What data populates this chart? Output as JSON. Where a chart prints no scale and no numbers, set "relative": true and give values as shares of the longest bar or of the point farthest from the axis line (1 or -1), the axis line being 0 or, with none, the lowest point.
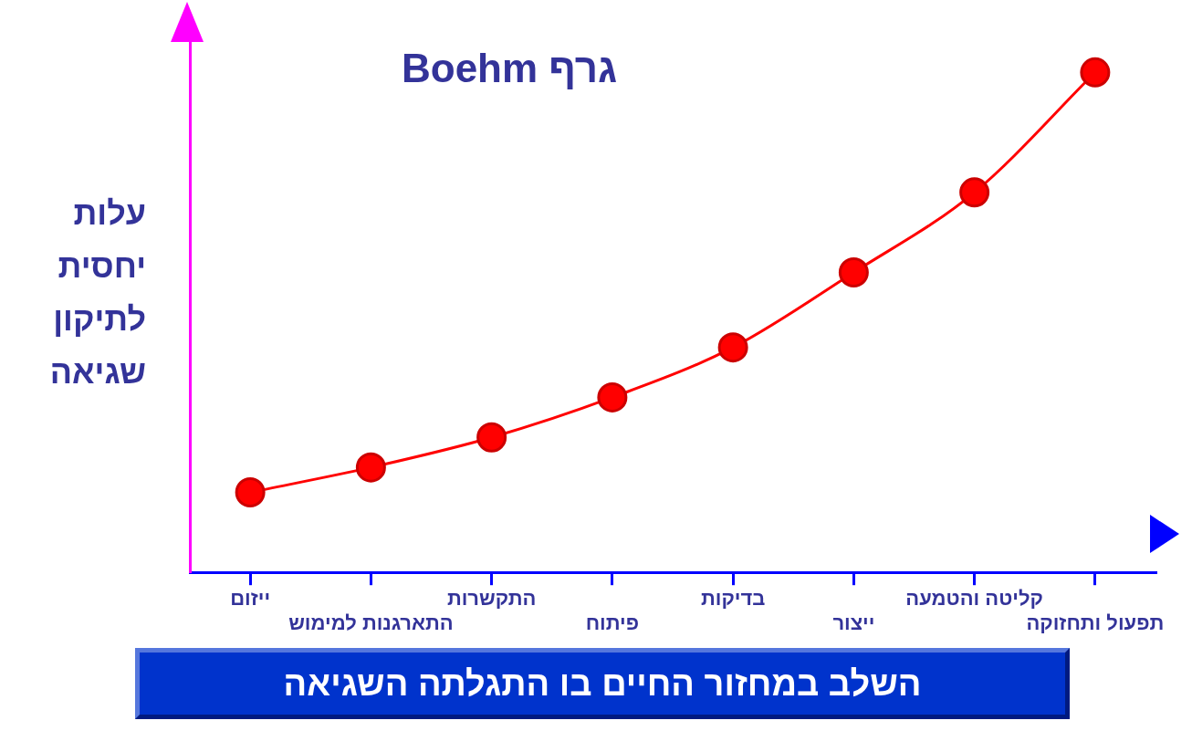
{
  "chart_data": {
    "type": "line",
    "title": "גרף Boehm",
    "xlabel": "השלב במחזור החיים בו התגלתה השגיאה",
    "ylabel": "עלות יחסית לתיקון שגיאה",
    "categories": [
      "ייזום",
      "התארגנות למימוש",
      "התקשרות",
      "פיתוח",
      "בדיקות",
      "ייצור",
      "קליטה והטמעה",
      "תפעול ותחזוקה"
    ],
    "relative": true,
    "marker": "circle",
    "line_style": "solid",
    "series": [
      {
        "color": "#ff0000",
        "values": [
          0.16,
          0.21,
          0.27,
          0.35,
          0.45,
          0.6,
          0.76,
          1
        ]
      }
    ]
  }
}
